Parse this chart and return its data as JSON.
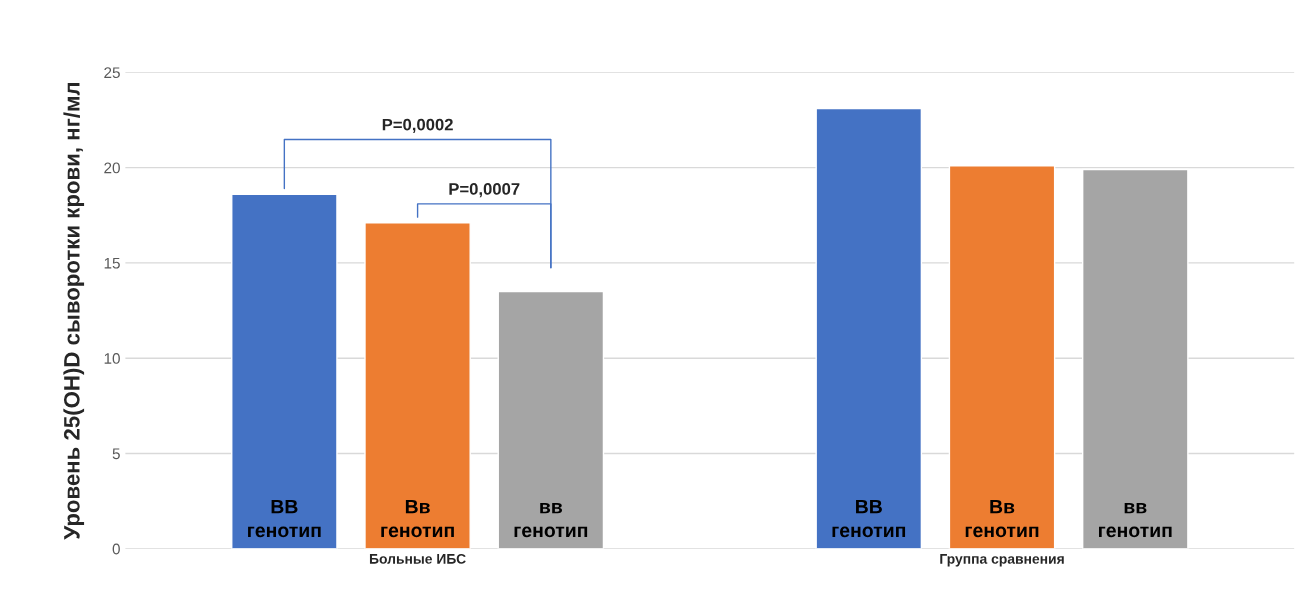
{
  "chart_data": {
    "type": "bar",
    "ylabel": "Уровень 25(OH)D сыворотки крови, нг/мл",
    "categories": [
      "Больные ИБС",
      "Группа сравнения"
    ],
    "series": [
      {
        "name": "ВВ\nгенотип",
        "color": "#4472c4",
        "values": [
          18.6,
          23.1
        ]
      },
      {
        "name": "Вв\nгенотип",
        "color": "#ed7d31",
        "values": [
          17.1,
          20.1
        ]
      },
      {
        "name": "вв\nгенотип",
        "color": "#a5a5a5",
        "values": [
          13.5,
          19.9
        ]
      }
    ],
    "ylim": [
      0,
      25
    ],
    "yticks": [
      0,
      5,
      10,
      15,
      20,
      25
    ],
    "grid": "y",
    "legend": false,
    "annotations": [
      "P=0,0002",
      "P=0,0007"
    ]
  }
}
